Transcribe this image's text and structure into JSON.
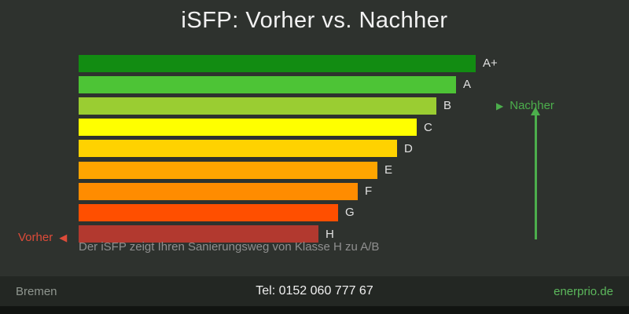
{
  "title": "iSFP: Vorher vs. Nachher",
  "chart_data": {
    "type": "bar",
    "orientation": "horizontal",
    "title": "iSFP: Vorher vs. Nachher",
    "categories": [
      "A+",
      "A",
      "B",
      "C",
      "D",
      "E",
      "F",
      "G",
      "H"
    ],
    "values": [
      505,
      480,
      455,
      430,
      405,
      380,
      355,
      330,
      305
    ],
    "values_unit": "px-bar-length",
    "colors": [
      "#128c12",
      "#4dc436",
      "#9acd32",
      "#ffff00",
      "#ffd200",
      "#ffa500",
      "#ff8c00",
      "#ff4f00",
      "#b2392f"
    ],
    "legend": "none",
    "grid": false
  },
  "annotations": {
    "nachher_label": "Nachher",
    "nachher_marker": "▶",
    "vorher_label": "Vorher",
    "vorher_marker": "◀",
    "caption": "Der iSFP zeigt Ihren Sanierungsweg von Klasse H zu A/B"
  },
  "footer": {
    "left": "Bremen",
    "center": "Tel: 0152 060 777 67",
    "right": "enerprio.de"
  },
  "colors": {
    "background": "#2e322e",
    "footer_background": "#232723",
    "accent_green": "#4cae4c",
    "accent_red": "#dd4b39",
    "footer_link_green": "#5cb85c"
  }
}
